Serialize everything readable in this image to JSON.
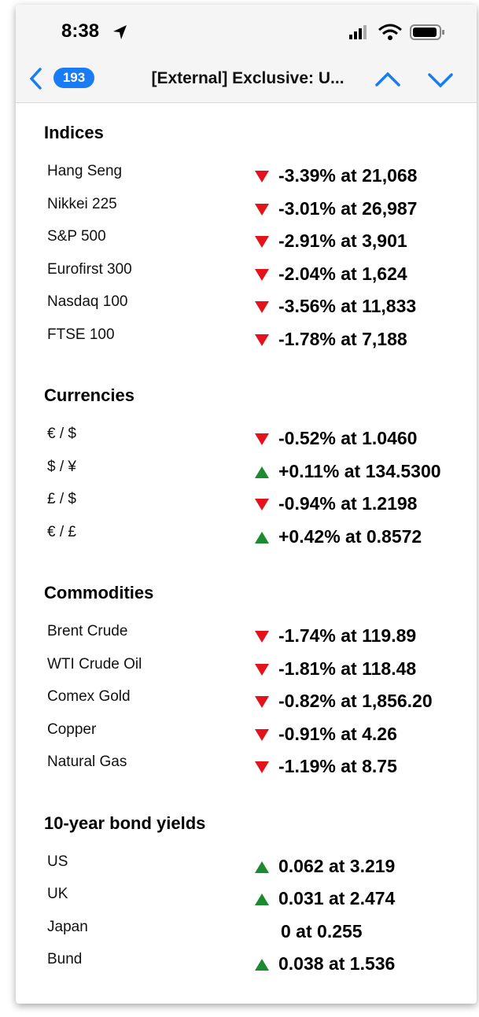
{
  "status_bar": {
    "time": "8:38"
  },
  "nav": {
    "badge": "193",
    "title": "[External] Exclusive: U..."
  },
  "sections": [
    {
      "title": "Indices",
      "rows": [
        {
          "name": "Hang Seng",
          "direction": "down",
          "value": "-3.39% at 21,068"
        },
        {
          "name": "Nikkei 225",
          "direction": "down",
          "value": "-3.01% at 26,987"
        },
        {
          "name": "S&P 500",
          "direction": "down",
          "value": "-2.91% at 3,901"
        },
        {
          "name": "Eurofirst 300",
          "direction": "down",
          "value": "-2.04% at 1,624"
        },
        {
          "name": "Nasdaq 100",
          "direction": "down",
          "value": "-3.56% at 11,833"
        },
        {
          "name": "FTSE 100",
          "direction": "down",
          "value": "-1.78% at 7,188"
        }
      ]
    },
    {
      "title": "Currencies",
      "rows": [
        {
          "name": "€ / $",
          "direction": "down",
          "value": "-0.52% at 1.0460"
        },
        {
          "name": "$ / ¥",
          "direction": "up",
          "value": "+0.11% at 134.5300"
        },
        {
          "name": "£ / $",
          "direction": "down",
          "value": "-0.94% at 1.2198"
        },
        {
          "name": "€ / £",
          "direction": "up",
          "value": "+0.42% at 0.8572"
        }
      ]
    },
    {
      "title": "Commodities",
      "rows": [
        {
          "name": "Brent Crude",
          "direction": "down",
          "value": "-1.74% at 119.89"
        },
        {
          "name": "WTI Crude Oil",
          "direction": "down",
          "value": "-1.81% at 118.48"
        },
        {
          "name": "Comex Gold",
          "direction": "down",
          "value": "-0.82% at 1,856.20"
        },
        {
          "name": "Copper",
          "direction": "down",
          "value": "-0.91% at 4.26"
        },
        {
          "name": "Natural Gas",
          "direction": "down",
          "value": "-1.19% at 8.75"
        }
      ]
    },
    {
      "title": "10-year bond yields",
      "rows": [
        {
          "name": "US",
          "direction": "up",
          "value": "0.062 at 3.219"
        },
        {
          "name": "UK",
          "direction": "up",
          "value": "0.031 at 2.474"
        },
        {
          "name": "Japan",
          "direction": "none",
          "value": "0 at 0.255"
        },
        {
          "name": "Bund",
          "direction": "up",
          "value": "0.038 at 1.536"
        }
      ]
    }
  ]
}
